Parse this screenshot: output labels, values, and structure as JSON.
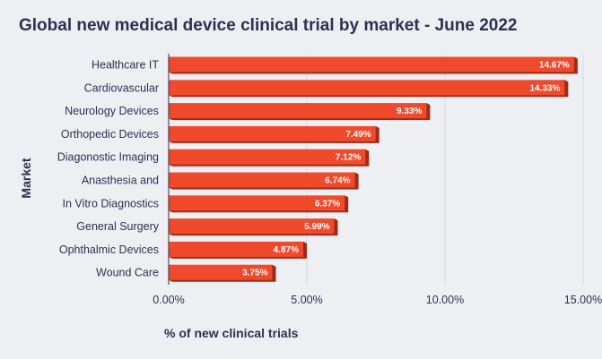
{
  "chart_data": {
    "type": "bar",
    "orientation": "horizontal",
    "title": "Global new medical device clinical trial by market - June 2022",
    "xlabel": "% of new clinical trials",
    "ylabel": "Market",
    "categories": [
      "Healthcare IT",
      "Cardiovascular",
      "Neurology Devices",
      "Orthopedic Devices",
      "Diagonostic Imaging",
      "Anasthesia and",
      "In Vitro Diagnostics",
      "General Surgery",
      "Ophthalmic Devices",
      "Wound Care"
    ],
    "values": [
      14.67,
      14.33,
      9.33,
      7.49,
      7.12,
      6.74,
      6.37,
      5.99,
      4.87,
      3.75
    ],
    "value_labels": [
      "14.67%",
      "14.33%",
      "9.33%",
      "7.49%",
      "7.12%",
      "6.74%",
      "6.37%",
      "5.99%",
      "4.87%",
      "3.75%"
    ],
    "xticks": [
      0,
      5,
      10,
      15
    ],
    "xtick_labels": [
      "0.00%",
      "5.00%",
      "10.00%",
      "15.00%"
    ],
    "xlim": [
      0,
      15
    ],
    "grid": "vertical",
    "bar_color": "#f04a2c",
    "bar_side_color": "#a02a17",
    "text_color": "#2b3252"
  }
}
